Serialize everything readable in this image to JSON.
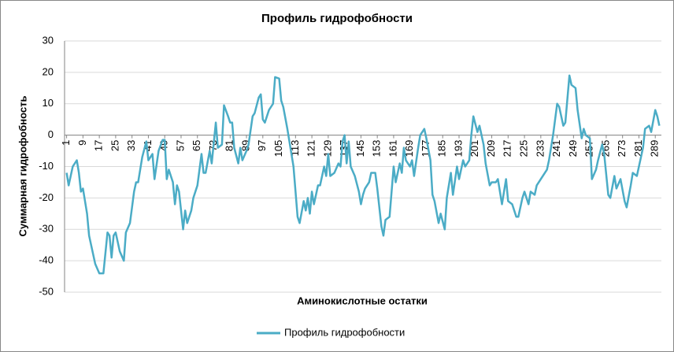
{
  "chart_data": {
    "type": "line",
    "title": "Профиль гидрофобности",
    "x_label": "Аминокислотные остатки",
    "y_label": "Суммарная гидрофобность",
    "xlim": [
      0,
      292
    ],
    "xticks": [
      1,
      9,
      17,
      25,
      33,
      41,
      49,
      57,
      65,
      73,
      81,
      89,
      97,
      105,
      113,
      121,
      129,
      137,
      145,
      153,
      161,
      169,
      177,
      185,
      193,
      201,
      209,
      217,
      225,
      233,
      241,
      249,
      257,
      265,
      273,
      281,
      289
    ],
    "ylim": [
      -50,
      30
    ],
    "yticks": [
      -50,
      -40,
      -30,
      -20,
      -10,
      0,
      10,
      20,
      30
    ],
    "grid": true,
    "legend": "bottom",
    "x": [
      1,
      2,
      4,
      6,
      7,
      8,
      9,
      11,
      12,
      14,
      15,
      17,
      19,
      21,
      22,
      23,
      24,
      25,
      27,
      29,
      30,
      32,
      34,
      35,
      36,
      38,
      40,
      41,
      43,
      44,
      46,
      48,
      49,
      50,
      51,
      53,
      54,
      55,
      56,
      58,
      59,
      60,
      62,
      63,
      65,
      67,
      68,
      69,
      71,
      72,
      74,
      75,
      77,
      78,
      80,
      81,
      82,
      83,
      85,
      86,
      87,
      89,
      90,
      92,
      93,
      95,
      96,
      97,
      98,
      100,
      102,
      103,
      105,
      106,
      107,
      109,
      110,
      112,
      113,
      114,
      115,
      117,
      118,
      119,
      120,
      121,
      122,
      124,
      125,
      127,
      128,
      129,
      130,
      132,
      134,
      135,
      136,
      137,
      138,
      139,
      140,
      142,
      144,
      145,
      146,
      147,
      149,
      150,
      152,
      153,
      155,
      156,
      157,
      159,
      160,
      161,
      162,
      164,
      165,
      166,
      167,
      169,
      170,
      171,
      173,
      174,
      176,
      177,
      179,
      180,
      181,
      183,
      184,
      186,
      187,
      189,
      190,
      192,
      193,
      195,
      196,
      198,
      199,
      200,
      202,
      203,
      205,
      206,
      208,
      209,
      211,
      212,
      214,
      216,
      217,
      219,
      221,
      222,
      224,
      225,
      227,
      228,
      230,
      231,
      233,
      234,
      236,
      237,
      239,
      241,
      242,
      244,
      245,
      247,
      248,
      250,
      251,
      253,
      254,
      255,
      257,
      258,
      260,
      261,
      263,
      264,
      266,
      267,
      269,
      270,
      272,
      274,
      275,
      277,
      278,
      280,
      281,
      283,
      284,
      286,
      287,
      289,
      290,
      291
    ],
    "series": [
      {
        "name": "Профиль гидрофобности",
        "color": "#4bacc6",
        "values": [
          -12,
          -16,
          -10,
          -8,
          -12,
          -18,
          -17,
          -25,
          -32,
          -38,
          -41,
          -44,
          -44,
          -31,
          -32,
          -39,
          -32,
          -31,
          -37,
          -40,
          -31,
          -28,
          -18,
          -15,
          -15,
          -7,
          -2,
          -8,
          -6,
          -14,
          -5,
          -1.5,
          -1.5,
          -14,
          -11,
          -15,
          -22,
          -16,
          -18,
          -30,
          -24,
          -28,
          -24,
          -20,
          -16,
          -6,
          -12,
          -12,
          -5,
          -9,
          4,
          -4,
          -3,
          9.5,
          6,
          4,
          4,
          -4,
          -9,
          -4,
          -8,
          -5,
          -3,
          6,
          7,
          12,
          13,
          5,
          4,
          8,
          10,
          18.5,
          18,
          11,
          9,
          2,
          -2,
          -10,
          -18,
          -26,
          -28,
          -21,
          -24,
          -20,
          -25,
          -18,
          -22,
          -16,
          -16,
          -10,
          -13,
          -6,
          -13,
          -12,
          -9,
          -10,
          -2,
          0,
          -9,
          -2,
          -10,
          -13,
          -18,
          -22,
          -19,
          -17,
          -15,
          -12,
          -12,
          -17,
          -29,
          -32,
          -27,
          -26,
          -18,
          -10,
          -15,
          -9,
          -12,
          -4,
          -8,
          -10,
          -8,
          -13,
          -4,
          0,
          2,
          -1,
          -8,
          -19,
          -21,
          -28,
          -25,
          -30,
          -20,
          -12,
          -19,
          -10,
          -14,
          -8,
          -10,
          -8,
          0,
          6,
          1,
          3,
          -3,
          -9,
          -16,
          -15,
          -15,
          -14,
          -22,
          -14,
          -21,
          -22,
          -26,
          -26,
          -20,
          -18,
          -22,
          -18,
          -19,
          -16,
          -14,
          -13,
          -11,
          -8,
          0,
          10,
          9,
          3,
          4,
          19,
          16,
          15,
          8,
          -1,
          2,
          0,
          -1,
          -14,
          -11,
          -8,
          -3,
          -6,
          -19,
          -20,
          -13,
          -17,
          -14,
          -21,
          -23,
          -16,
          -12,
          -13,
          -10,
          -4,
          2,
          3,
          1,
          8,
          6,
          3
        ]
      }
    ]
  }
}
